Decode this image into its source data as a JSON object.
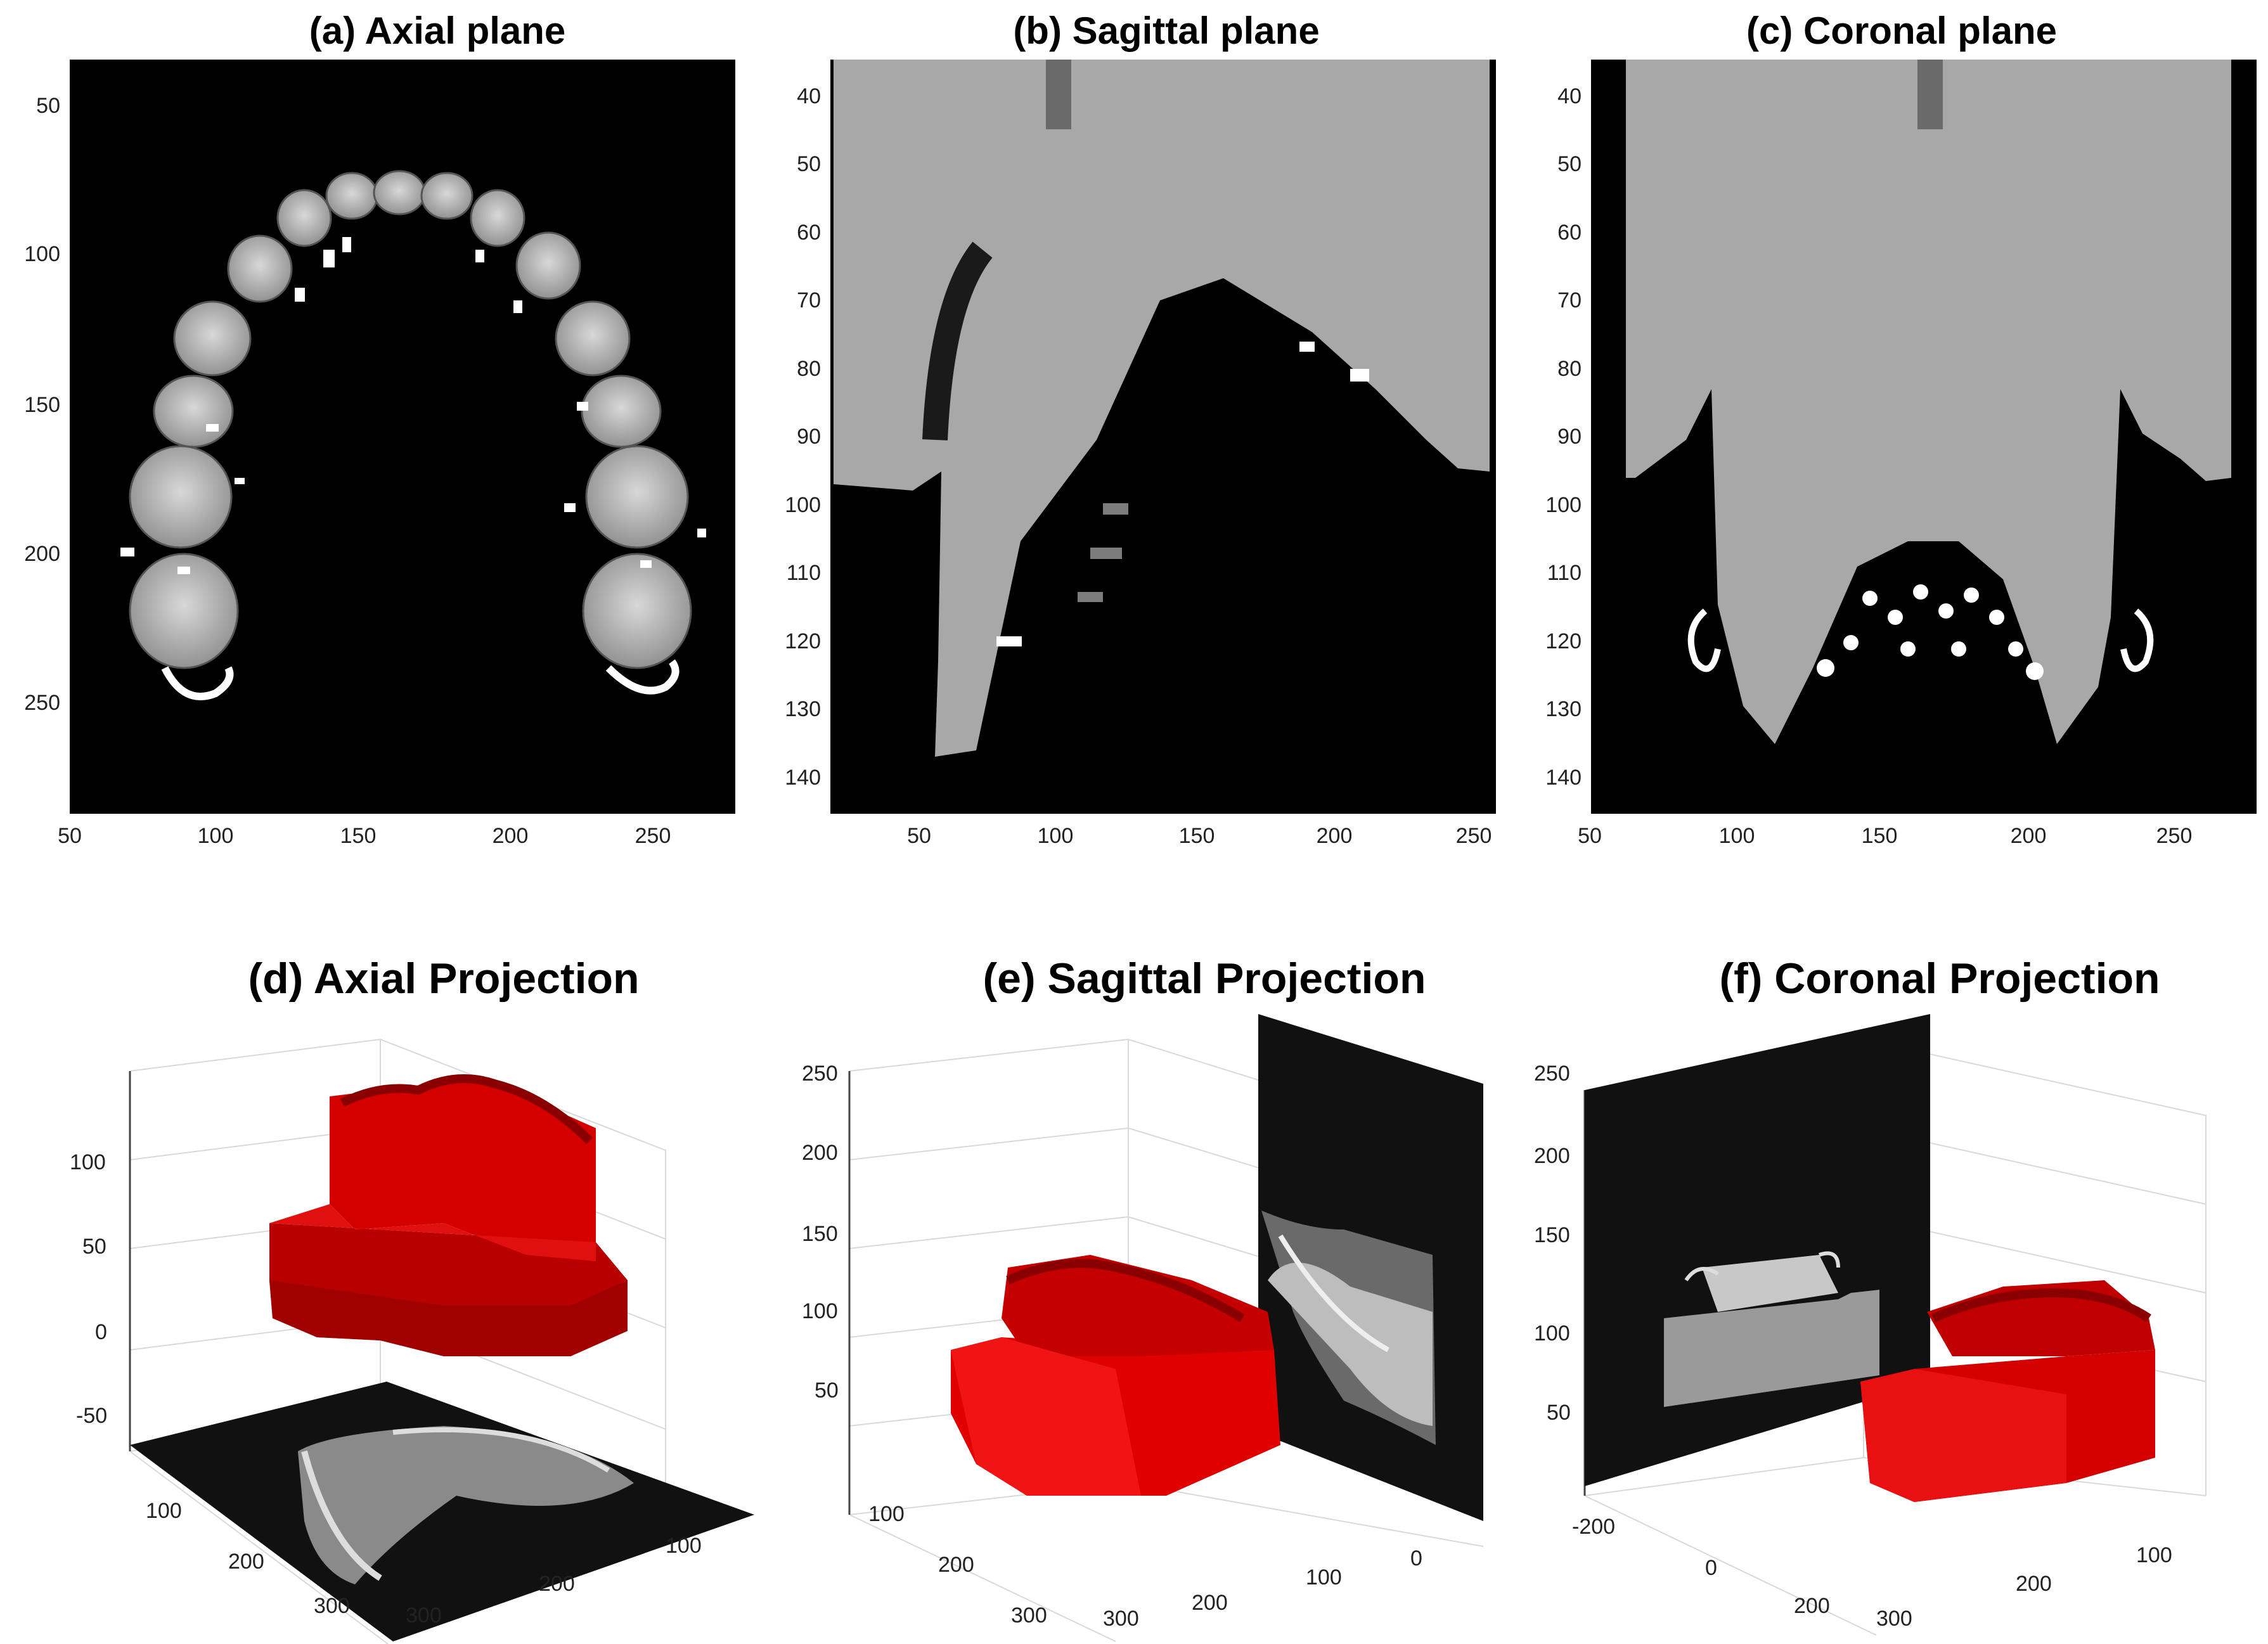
{
  "panels": [
    {
      "title": "(a) Axial plane",
      "yticks": [
        "50",
        "100",
        "150",
        "200",
        "250"
      ],
      "xticks": [
        "50",
        "100",
        "150",
        "200",
        "250"
      ]
    },
    {
      "title": "(b) Sagittal plane",
      "yticks": [
        "40",
        "50",
        "60",
        "70",
        "80",
        "90",
        "100",
        "110",
        "120",
        "130",
        "140"
      ],
      "xticks": [
        "50",
        "100",
        "150",
        "200",
        "250"
      ]
    },
    {
      "title": "(c) Coronal plane",
      "yticks": [
        "40",
        "50",
        "60",
        "70",
        "80",
        "90",
        "100",
        "110",
        "120",
        "130",
        "140"
      ],
      "xticks": [
        "50",
        "100",
        "150",
        "200",
        "250"
      ]
    },
    {
      "title": "(d) Axial Projection",
      "zticks": [
        "100",
        "50",
        "0",
        "-50"
      ],
      "xticks": [
        "100",
        "200",
        "300"
      ],
      "yticks": [
        "100",
        "200",
        "300"
      ]
    },
    {
      "title": "(e) Sagittal Projection",
      "zticks": [
        "250",
        "200",
        "150",
        "100",
        "50"
      ],
      "xticks": [
        "100",
        "200",
        "300"
      ],
      "yticks": [
        "0",
        "100",
        "200",
        "300"
      ]
    },
    {
      "title": "(f) Coronal Projection",
      "zticks": [
        "250",
        "200",
        "150",
        "100",
        "50"
      ],
      "xticks": [
        "-200",
        "0",
        "200"
      ],
      "yticks": [
        "100",
        "200",
        "300"
      ]
    }
  ],
  "colors": {
    "mesh": "#d40000",
    "slice_background": "#000000",
    "grid": "#d9d9d9"
  }
}
